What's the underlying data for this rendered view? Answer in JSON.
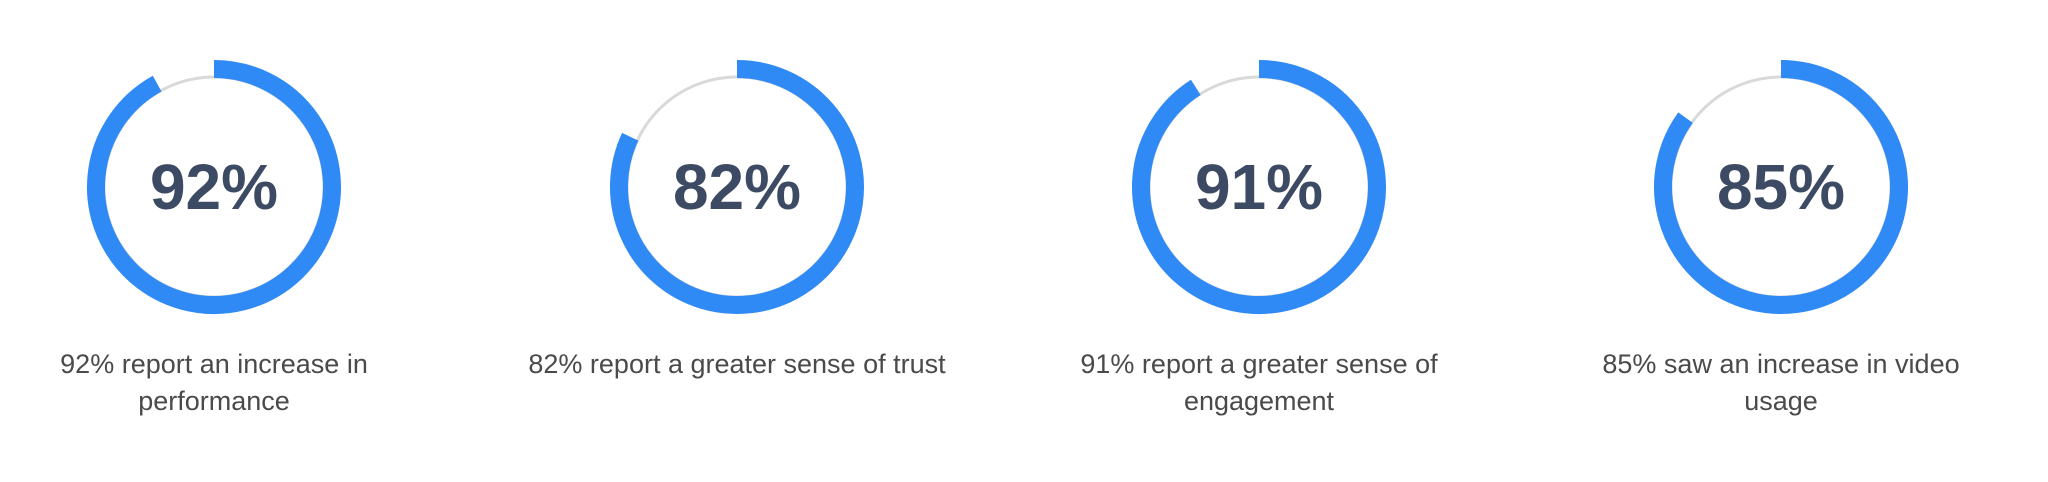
{
  "chart_data": [
    {
      "type": "donut",
      "values": [
        92
      ],
      "value_labels": [
        "92%"
      ],
      "caption": "92% report an increase in performance",
      "color": "#2f8af5"
    },
    {
      "type": "donut",
      "values": [
        82
      ],
      "value_labels": [
        "82%"
      ],
      "caption": "82% report a greater sense of trust",
      "color": "#2f8af5"
    },
    {
      "type": "donut",
      "values": [
        91
      ],
      "value_labels": [
        "91%"
      ],
      "caption": "91% report a greater sense of engagement",
      "color": "#2f8af5"
    },
    {
      "type": "donut",
      "values": [
        85
      ],
      "value_labels": [
        "85%"
      ],
      "caption": "85% saw an increase in video usage",
      "color": "#2f8af5"
    }
  ]
}
